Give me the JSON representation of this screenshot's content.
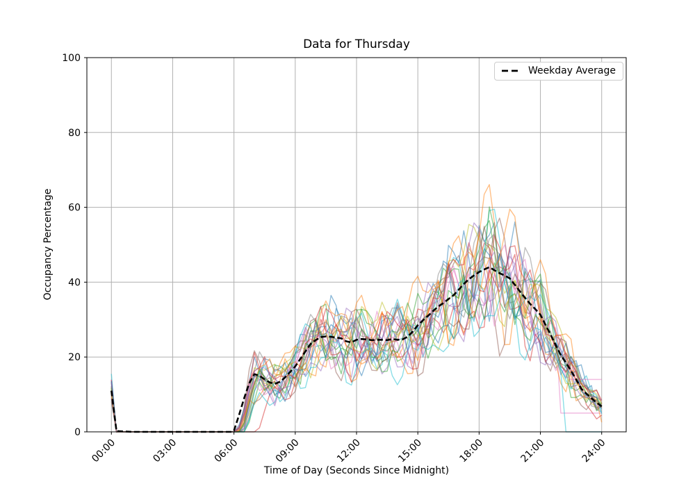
{
  "chart_data": {
    "type": "line",
    "title": "Data for Thursday",
    "xlabel": "Time of Day (Seconds Since Midnight)",
    "ylabel": "Occupancy Percentage",
    "xlim_hours": [
      -1.2,
      25.2
    ],
    "ylim": [
      0,
      100
    ],
    "grid": true,
    "x_ticks": [
      {
        "hour": 0,
        "label": "00:00"
      },
      {
        "hour": 3,
        "label": "03:00"
      },
      {
        "hour": 6,
        "label": "06:00"
      },
      {
        "hour": 9,
        "label": "09:00"
      },
      {
        "hour": 12,
        "label": "12:00"
      },
      {
        "hour": 15,
        "label": "15:00"
      },
      {
        "hour": 18,
        "label": "18:00"
      },
      {
        "hour": 21,
        "label": "21:00"
      },
      {
        "hour": 24,
        "label": "24:00"
      }
    ],
    "y_ticks": [
      0,
      20,
      40,
      60,
      80,
      100
    ],
    "legend": {
      "label": "Weekday Average",
      "position": "upper right"
    },
    "average_series": {
      "name": "Weekday Average",
      "color": "#000000",
      "dashed": true,
      "points": [
        [
          0,
          11
        ],
        [
          0.25,
          0.2
        ],
        [
          1,
          0
        ],
        [
          2,
          0
        ],
        [
          3,
          0
        ],
        [
          4,
          0
        ],
        [
          5,
          0
        ],
        [
          5.9,
          0
        ],
        [
          6.0,
          0.3
        ],
        [
          6.25,
          4.5
        ],
        [
          6.5,
          9.0
        ],
        [
          6.75,
          13.0
        ],
        [
          7.0,
          15.4
        ],
        [
          7.25,
          15.0
        ],
        [
          7.5,
          14.0
        ],
        [
          7.75,
          13.2
        ],
        [
          8.0,
          12.8
        ],
        [
          8.25,
          13.4
        ],
        [
          8.5,
          14.5
        ],
        [
          8.75,
          16.0
        ],
        [
          9.0,
          17.5
        ],
        [
          9.25,
          19.5
        ],
        [
          9.5,
          21.5
        ],
        [
          9.75,
          23.5
        ],
        [
          10.0,
          24.5
        ],
        [
          10.25,
          25.3
        ],
        [
          10.5,
          25.5
        ],
        [
          10.75,
          25.4
        ],
        [
          11.0,
          25.2
        ],
        [
          11.25,
          25.0
        ],
        [
          11.5,
          24.2
        ],
        [
          11.75,
          23.9
        ],
        [
          12.0,
          24.6
        ],
        [
          12.25,
          24.8
        ],
        [
          12.5,
          24.7
        ],
        [
          12.75,
          24.5
        ],
        [
          13.0,
          24.6
        ],
        [
          13.25,
          24.6
        ],
        [
          13.5,
          24.5
        ],
        [
          13.75,
          24.8
        ],
        [
          14.0,
          24.6
        ],
        [
          14.25,
          24.7
        ],
        [
          14.5,
          25.4
        ],
        [
          14.75,
          26.8
        ],
        [
          15.0,
          28.5
        ],
        [
          15.25,
          29.8
        ],
        [
          15.5,
          31.0
        ],
        [
          15.75,
          32.3
        ],
        [
          16.0,
          33.5
        ],
        [
          16.25,
          34.4
        ],
        [
          16.5,
          35.5
        ],
        [
          16.75,
          36.5
        ],
        [
          17.0,
          38.0
        ],
        [
          17.25,
          39.5
        ],
        [
          17.5,
          40.8
        ],
        [
          17.75,
          41.8
        ],
        [
          18.0,
          42.7
        ],
        [
          18.25,
          43.4
        ],
        [
          18.5,
          44.0
        ],
        [
          18.75,
          43.2
        ],
        [
          19.0,
          42.4
        ],
        [
          19.25,
          41.8
        ],
        [
          19.5,
          41.0
        ],
        [
          19.75,
          39.3
        ],
        [
          20.0,
          37.5
        ],
        [
          20.25,
          35.8
        ],
        [
          20.5,
          34.2
        ],
        [
          20.75,
          32.8
        ],
        [
          21.0,
          31.3
        ],
        [
          21.25,
          28.6
        ],
        [
          21.5,
          26.0
        ],
        [
          21.75,
          23.2
        ],
        [
          22.0,
          20.5
        ],
        [
          22.25,
          18.5
        ],
        [
          22.5,
          16.3
        ],
        [
          22.75,
          14.0
        ],
        [
          23.0,
          11.5
        ],
        [
          23.25,
          10.2
        ],
        [
          23.5,
          9.0
        ],
        [
          23.75,
          7.8
        ],
        [
          24.0,
          6.8
        ]
      ]
    },
    "individual_series": {
      "count": 25,
      "description": "Individual Thursday occupancy traces scattered around the weekday average",
      "palette": [
        "#1f77b4",
        "#ff7f0e",
        "#2ca02c",
        "#d62728",
        "#9467bd",
        "#8c564b",
        "#e377c2",
        "#7f7f7f",
        "#bcbd22",
        "#17becf"
      ],
      "alpha": 0.5,
      "line_width": 1.4,
      "sample_step_hours": 0.25,
      "spread_fraction": 0.32,
      "start_spike_range": [
        8,
        15.5
      ],
      "active_hours": [
        6,
        24
      ],
      "value_range_at_peak": [
        25,
        64
      ],
      "overrides": {
        "1": {
          "amp": 0.45,
          "bias": 0.1,
          "p1_align_hour": 18.2
        },
        "3": {
          "start_delay": 1.2
        },
        "6": {
          "flatline_from": 21.8,
          "flatline_value": 5
        },
        "9": {
          "spike": 15.5
        },
        "16": {
          "flatline_from": 22.4,
          "flatline_value": 14
        },
        "19": {
          "bias": -0.22,
          "flatline_from": 22.25,
          "flatline_value": 0
        }
      }
    },
    "styles": {
      "background": "#ffffff",
      "grid_color": "#b0b0b0",
      "spine_color": "#000000",
      "tick_label_color": "#000000",
      "avg_line_color": "#000000",
      "avg_line_width": 2.6,
      "avg_dash": "8 4"
    }
  }
}
